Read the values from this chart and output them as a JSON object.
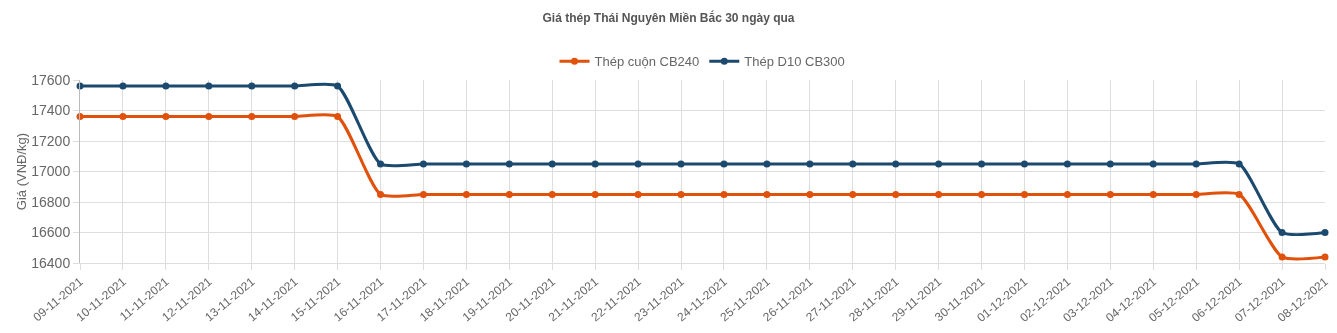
{
  "chart_data": {
    "type": "line",
    "title": "Giá thép Thái Nguyên Miền Bắc 30 ngày qua",
    "ylabel": "Giá (VNĐ/kg)",
    "categories": [
      "09-11-2021",
      "10-11-2021",
      "11-11-2021",
      "12-11-2021",
      "13-11-2021",
      "14-11-2021",
      "15-11-2021",
      "16-11-2021",
      "17-11-2021",
      "18-11-2021",
      "19-11-2021",
      "20-11-2021",
      "21-11-2021",
      "22-11-2021",
      "23-11-2021",
      "24-11-2021",
      "25-11-2021",
      "26-11-2021",
      "27-11-2021",
      "28-11-2021",
      "29-11-2021",
      "30-11-2021",
      "01-12-2021",
      "02-12-2021",
      "03-12-2021",
      "04-12-2021",
      "05-12-2021",
      "06-12-2021",
      "07-12-2021",
      "08-12-2021"
    ],
    "series": [
      {
        "name": "Thép cuộn CB240",
        "color": "#e0510c",
        "values": [
          17360,
          17360,
          17360,
          17360,
          17360,
          17360,
          17360,
          16850,
          16850,
          16850,
          16850,
          16850,
          16850,
          16850,
          16850,
          16850,
          16850,
          16850,
          16850,
          16850,
          16850,
          16850,
          16850,
          16850,
          16850,
          16850,
          16850,
          16850,
          16440,
          16440
        ]
      },
      {
        "name": "Thép D10 CB300",
        "color": "#1c4a6e",
        "values": [
          17560,
          17560,
          17560,
          17560,
          17560,
          17560,
          17560,
          17050,
          17050,
          17050,
          17050,
          17050,
          17050,
          17050,
          17050,
          17050,
          17050,
          17050,
          17050,
          17050,
          17050,
          17050,
          17050,
          17050,
          17050,
          17050,
          17050,
          17050,
          16600,
          16600
        ]
      }
    ],
    "ylim": [
      16400,
      17600
    ],
    "yticks": [
      16400,
      16600,
      16800,
      17000,
      17200,
      17400,
      17600
    ],
    "grid": true,
    "legend": "top",
    "marker": "circle",
    "line_style": "solid"
  }
}
